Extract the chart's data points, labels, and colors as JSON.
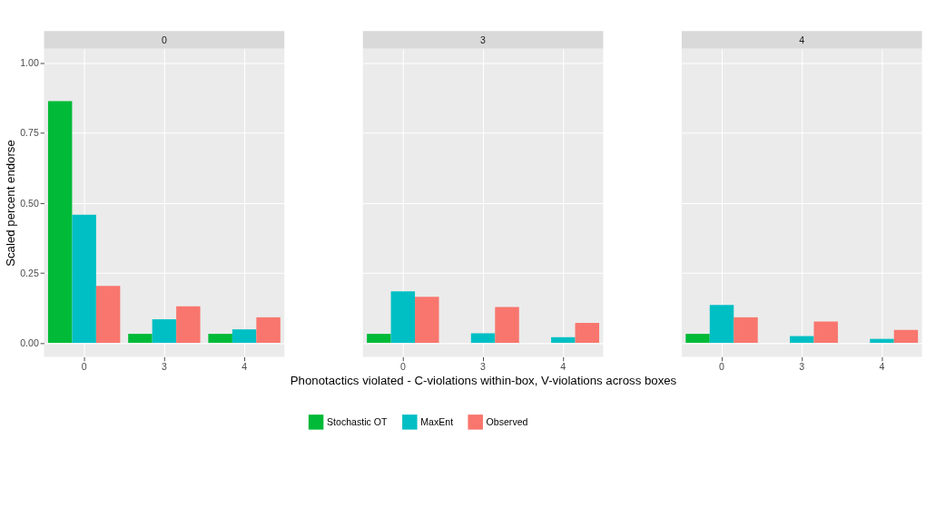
{
  "chart_data": [
    {
      "type": "bar",
      "title": "0",
      "ylabel": "Scaled percent endorse",
      "categories": [
        "0",
        "3",
        "4"
      ],
      "series": [
        {
          "name": "Stochastic OT",
          "color": "#00ba38",
          "values": [
            0.863,
            0.032,
            0.032
          ]
        },
        {
          "name": "MaxEnt",
          "color": "#00bfc4",
          "values": [
            0.457,
            0.084,
            0.048
          ]
        },
        {
          "name": "Observed",
          "color": "#f8766d",
          "values": [
            0.203,
            0.13,
            0.091
          ]
        }
      ],
      "ylim": [
        -0.05,
        1.05
      ],
      "yticks": [
        {
          "value": 0,
          "label": "0.00"
        },
        {
          "value": 0.25,
          "label": "0.25"
        },
        {
          "value": 0.5,
          "label": "0.50"
        },
        {
          "value": 0.75,
          "label": "0.75"
        },
        {
          "value": 1,
          "label": "1.00"
        }
      ],
      "grid": true,
      "legend": "bottom"
    },
    {
      "type": "bar",
      "title": "3",
      "xlabel": "Phonotactics violated - C-violations within-box, V-violations across boxes",
      "categories": [
        "0",
        "3",
        "4"
      ],
      "series": [
        {
          "name": "Stochastic OT",
          "color": "#00ba38",
          "values": [
            0.032,
            0,
            0
          ]
        },
        {
          "name": "MaxEnt",
          "color": "#00bfc4",
          "values": [
            0.184,
            0.034,
            0.02
          ]
        },
        {
          "name": "Observed",
          "color": "#f8766d",
          "values": [
            0.164,
            0.128,
            0.071
          ]
        }
      ],
      "ylim": [
        -0.05,
        1.05
      ],
      "yticks": [
        0,
        0.25,
        0.5,
        0.75,
        1
      ],
      "grid": true,
      "legend": "bottom",
      "tick_labels": "x"
    },
    {
      "type": "bar",
      "title": "4",
      "categories": [
        "0",
        "3",
        "4"
      ],
      "series": [
        {
          "name": "Stochastic OT",
          "color": "#00ba38",
          "values": [
            0.032,
            0,
            0
          ]
        },
        {
          "name": "MaxEnt",
          "color": "#00bfc4",
          "values": [
            0.135,
            0.024,
            0.014
          ]
        },
        {
          "name": "Observed",
          "color": "#f8766d",
          "values": [
            0.091,
            0.076,
            0.046
          ]
        }
      ],
      "ylim": [
        -0.05,
        1.05
      ],
      "yticks": [
        0,
        0.25,
        0.5,
        0.75,
        1
      ],
      "grid": true,
      "legend": "bottom",
      "tick_labels": "x"
    }
  ]
}
